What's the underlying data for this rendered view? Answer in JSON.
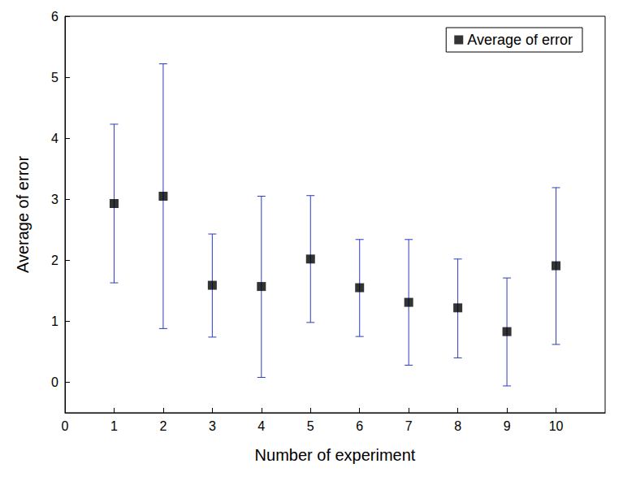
{
  "chart_data": {
    "type": "scatter",
    "x_label": "Number of experiment",
    "y_label": "Average of error",
    "x": [
      1,
      2,
      3,
      4,
      5,
      6,
      7,
      8,
      9,
      10
    ],
    "series": [
      {
        "name": "Average of error",
        "color": "#000000",
        "marker": "square",
        "values": [
          2.93,
          3.05,
          1.59,
          1.57,
          2.02,
          1.55,
          1.31,
          1.22,
          0.83,
          1.91
        ],
        "error_low": [
          1.63,
          0.88,
          0.74,
          0.08,
          0.98,
          0.75,
          0.28,
          0.4,
          -0.06,
          0.62
        ],
        "error_high": [
          4.23,
          5.22,
          2.43,
          3.05,
          3.06,
          2.34,
          2.34,
          2.02,
          1.71,
          3.19
        ]
      }
    ],
    "xlim": [
      0,
      11
    ],
    "xticks": [
      0,
      1,
      2,
      3,
      4,
      5,
      6,
      7,
      8,
      9,
      10
    ],
    "ylim": [
      -0.5,
      6
    ],
    "yticks": [
      0,
      1,
      2,
      3,
      4,
      5,
      6
    ],
    "legend": "top-right",
    "grid": false
  }
}
